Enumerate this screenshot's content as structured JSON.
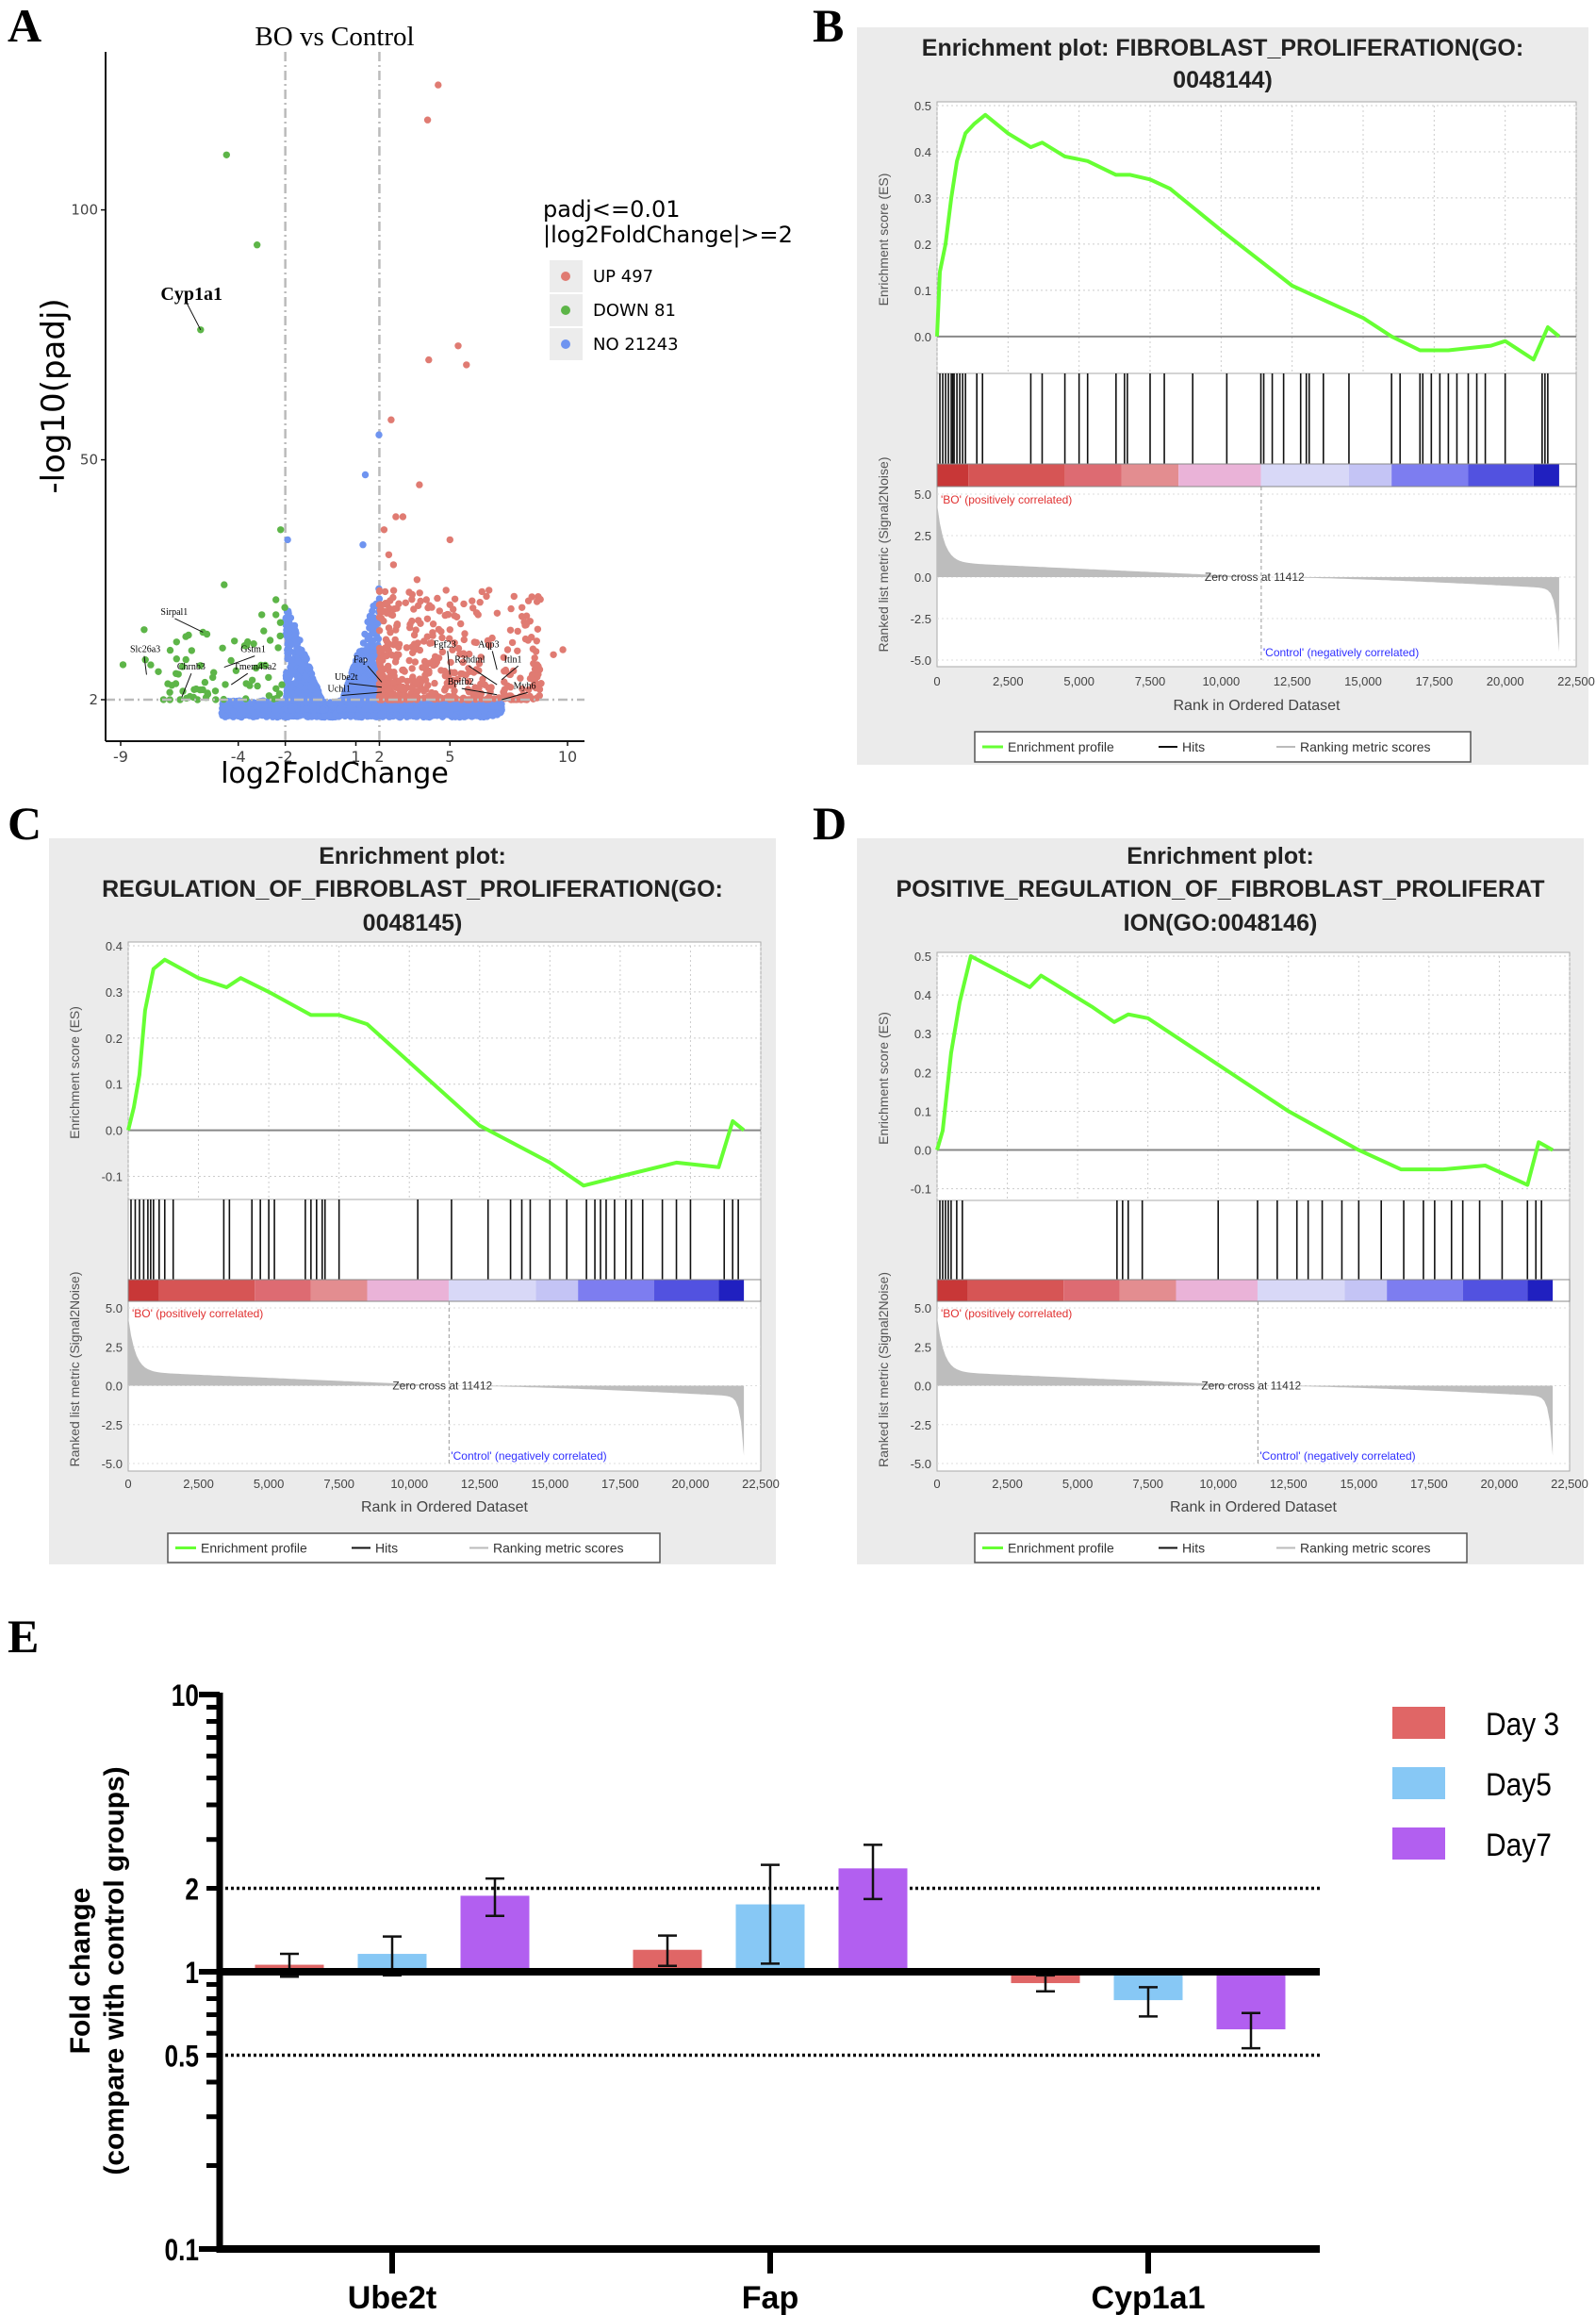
{
  "panel_letters": [
    "A",
    "B",
    "C",
    "D",
    "E"
  ],
  "chart_data": [
    {
      "type": "scatter",
      "id": "volcano",
      "title": "BO vs Control",
      "xlabel": "log2FoldChange",
      "ylabel": "-log10(padj)",
      "xticks": [
        "-9",
        "-4",
        "-2",
        "1",
        "2",
        "5",
        "10"
      ],
      "xtick_values": [
        -9,
        -4,
        -2,
        1,
        2,
        5,
        10
      ],
      "yticks": [
        "2",
        "50",
        "100"
      ],
      "ytick_values": [
        2,
        50,
        100
      ],
      "xlim": [
        -9.6,
        10.4
      ],
      "ylim": [
        -6,
        132
      ],
      "thresholds": {
        "log2fc": [
          -2,
          2
        ],
        "neglog10_padj": 2
      },
      "legend": {
        "title_lines": [
          "padj<=0.01",
          "|log2FoldChange|>=2"
        ],
        "items": [
          {
            "label": "UP 497",
            "color": "#e07b72"
          },
          {
            "label": "DOWN 81",
            "color": "#5db548"
          },
          {
            "label": "NO 21243",
            "color": "#6f94f0"
          }
        ]
      },
      "counts": {
        "up": 497,
        "down": 81,
        "no": 21243
      },
      "notable_points": {
        "up": [
          [
            4.5,
            125
          ],
          [
            4.05,
            118
          ],
          [
            5.35,
            72.8
          ],
          [
            4.1,
            70
          ],
          [
            5.7,
            69
          ],
          [
            2.5,
            58
          ],
          [
            3.7,
            45
          ],
          [
            2.7,
            38.6
          ],
          [
            3.0,
            38.6
          ],
          [
            2.2,
            36
          ],
          [
            5.0,
            34
          ],
          [
            2.4,
            31
          ],
          [
            2.6,
            29
          ],
          [
            3.6,
            26
          ],
          [
            4.0,
            22
          ],
          [
            5.0,
            21
          ],
          [
            6.2,
            19
          ],
          [
            5.0,
            16
          ],
          [
            5.6,
            14
          ],
          [
            9.8,
            12
          ],
          [
            9.4,
            11
          ],
          [
            8.7,
            9
          ],
          [
            8.5,
            7
          ]
        ],
        "down": [
          [
            -4.5,
            111
          ],
          [
            -3.2,
            93
          ],
          [
            -5.6,
            76
          ],
          [
            -2.2,
            36
          ],
          [
            -4.6,
            25
          ],
          [
            -2.4,
            22
          ],
          [
            -5.5,
            15.5
          ],
          [
            -8.0,
            16
          ],
          [
            -8.9,
            9
          ],
          [
            -3.0,
            19
          ],
          [
            -2.4,
            19
          ]
        ],
        "no": [
          [
            1.98,
            55
          ],
          [
            1.4,
            47
          ],
          [
            -1.9,
            34
          ],
          [
            1.3,
            33
          ]
        ]
      },
      "labeled_genes": [
        {
          "gene": "Cyp1a1",
          "x": -5.6,
          "y": 76
        },
        {
          "gene": "Sirpal1",
          "x": -5.5,
          "y": 15.5
        },
        {
          "gene": "Slc26a3",
          "x": -7.9,
          "y": 7
        },
        {
          "gene": "Chrnb3",
          "x": -6.4,
          "y": 2.5
        },
        {
          "gene": "Gstm1",
          "x": -4.6,
          "y": 8.5
        },
        {
          "gene": "Tmem45a2",
          "x": -4.3,
          "y": 5
        },
        {
          "gene": "Fap",
          "x": 2.1,
          "y": 5.5
        },
        {
          "gene": "Ube2t",
          "x": 2.1,
          "y": 4.5
        },
        {
          "gene": "Uchl1",
          "x": 2.1,
          "y": 3.5
        },
        {
          "gene": "Fgf23",
          "x": 5.0,
          "y": 7
        },
        {
          "gene": "R3hdml",
          "x": 7.0,
          "y": 5
        },
        {
          "gene": "Aqp3",
          "x": 7.0,
          "y": 8
        },
        {
          "gene": "Itln1",
          "x": 7.2,
          "y": 6
        },
        {
          "gene": "Bpifb2",
          "x": 7.0,
          "y": 3
        },
        {
          "gene": "Myh6",
          "x": 7.2,
          "y": 2
        }
      ]
    },
    {
      "type": "line",
      "id": "gsea_b",
      "title_lines": [
        "Enrichment plot: FIBROBLAST_PROLIFERATION(GO:",
        "0048144)"
      ],
      "es_ylabel": "Enrichment score (ES)",
      "metric_ylabel": "Ranked list metric (Signal2Noise)",
      "xlabel": "Rank in Ordered Dataset",
      "es_ticks": [
        "0.0",
        "0.1",
        "0.2",
        "0.3",
        "0.4",
        "0.5"
      ],
      "es_tick_values": [
        0,
        0.1,
        0.2,
        0.3,
        0.4,
        0.5
      ],
      "es_ylim": [
        -0.08,
        0.5
      ],
      "es_curve": [
        [
          0,
          0
        ],
        [
          100,
          0.14
        ],
        [
          300,
          0.2
        ],
        [
          500,
          0.3
        ],
        [
          700,
          0.38
        ],
        [
          1000,
          0.44
        ],
        [
          1300,
          0.46
        ],
        [
          1700,
          0.48
        ],
        [
          2500,
          0.44
        ],
        [
          3300,
          0.41
        ],
        [
          3700,
          0.42
        ],
        [
          4500,
          0.39
        ],
        [
          5300,
          0.38
        ],
        [
          6300,
          0.35
        ],
        [
          6800,
          0.35
        ],
        [
          7500,
          0.34
        ],
        [
          8200,
          0.32
        ],
        [
          10000,
          0.23
        ],
        [
          12500,
          0.11
        ],
        [
          15000,
          0.04
        ],
        [
          16000,
          0.0
        ],
        [
          17000,
          -0.03
        ],
        [
          18000,
          -0.03
        ],
        [
          19500,
          -0.02
        ],
        [
          20000,
          -0.01
        ],
        [
          21000,
          -0.05
        ],
        [
          21500,
          0.02
        ],
        [
          21900,
          0.0
        ]
      ],
      "hits": [
        100,
        200,
        300,
        400,
        500,
        550,
        600,
        700,
        800,
        900,
        1000,
        1400,
        1600,
        3300,
        3700,
        4500,
        5000,
        5300,
        6300,
        6600,
        6700,
        7500,
        8000,
        9000,
        10200,
        11400,
        11500,
        11800,
        12200,
        12800,
        13000,
        13100,
        13600,
        14500,
        16000,
        16300,
        17000,
        17100,
        17400,
        17700,
        18000,
        18300,
        18700,
        19000,
        19300,
        20000,
        21300,
        21400,
        21500
      ],
      "metric_ticks": [
        "5.0",
        "2.5",
        "0.0",
        "-2.5",
        "-5.0"
      ],
      "metric_tick_values": [
        5,
        2.5,
        0,
        -2.5,
        -5
      ],
      "xticks": [
        "0",
        "2,500",
        "5,000",
        "7,500",
        "10,000",
        "12,500",
        "15,000",
        "17,500",
        "20,000",
        "22,500"
      ],
      "xtick_values": [
        0,
        2500,
        5000,
        7500,
        10000,
        12500,
        15000,
        17500,
        20000,
        22500
      ],
      "xlim": [
        0,
        22500
      ],
      "pos_label": "'BO' (positively correlated)",
      "neg_label": "'Control' (negatively correlated)",
      "zero_cross_label": "Zero cross at 11412",
      "zero_cross": 11412,
      "legend": [
        "Enrichment profile",
        "Hits",
        "Ranking metric scores"
      ]
    },
    {
      "type": "line",
      "id": "gsea_c",
      "title_lines": [
        "Enrichment plot:",
        "REGULATION_OF_FIBROBLAST_PROLIFERATION(GO:",
        "0048145)"
      ],
      "es_ylabel": "Enrichment score (ES)",
      "metric_ylabel": "Ranked list metric (Signal2Noise)",
      "xlabel": "Rank in Ordered Dataset",
      "es_ticks": [
        "-0.1",
        "0.0",
        "0.1",
        "0.2",
        "0.3",
        "0.4"
      ],
      "es_tick_values": [
        -0.1,
        0,
        0.1,
        0.2,
        0.3,
        0.4
      ],
      "es_ylim": [
        -0.15,
        0.4
      ],
      "es_curve": [
        [
          0,
          0
        ],
        [
          200,
          0.05
        ],
        [
          400,
          0.12
        ],
        [
          600,
          0.26
        ],
        [
          900,
          0.35
        ],
        [
          1300,
          0.37
        ],
        [
          2500,
          0.33
        ],
        [
          3500,
          0.31
        ],
        [
          4000,
          0.33
        ],
        [
          5000,
          0.3
        ],
        [
          6500,
          0.25
        ],
        [
          7500,
          0.25
        ],
        [
          8500,
          0.23
        ],
        [
          12500,
          0.01
        ],
        [
          15000,
          -0.07
        ],
        [
          16200,
          -0.12
        ],
        [
          17500,
          -0.1
        ],
        [
          19500,
          -0.07
        ],
        [
          21000,
          -0.08
        ],
        [
          21500,
          0.02
        ],
        [
          21900,
          0.0
        ]
      ],
      "hits": [
        100,
        250,
        400,
        550,
        700,
        800,
        900,
        1100,
        1300,
        1600,
        3400,
        3600,
        4400,
        4700,
        5000,
        5200,
        6300,
        6500,
        6700,
        6900,
        7000,
        7500,
        10300,
        11500,
        12800,
        13600,
        14000,
        14300,
        15000,
        15600,
        16300,
        16600,
        16800,
        17000,
        17300,
        17700,
        17900,
        18300,
        19000,
        19500,
        20000,
        21200,
        21500,
        21700
      ],
      "metric_ticks": [
        "5.0",
        "2.5",
        "0.0",
        "-2.5",
        "-5.0"
      ],
      "metric_tick_values": [
        5,
        2.5,
        0,
        -2.5,
        -5
      ],
      "xticks": [
        "0",
        "2,500",
        "5,000",
        "7,500",
        "10,000",
        "12,500",
        "15,000",
        "17,500",
        "20,000",
        "22,500"
      ],
      "xtick_values": [
        0,
        2500,
        5000,
        7500,
        10000,
        12500,
        15000,
        17500,
        20000,
        22500
      ],
      "xlim": [
        0,
        22500
      ],
      "pos_label": "'BO' (positively correlated)",
      "neg_label": "'Control' (negatively correlated)",
      "zero_cross_label": "Zero cross at 11412",
      "zero_cross": 11412,
      "legend": [
        "Enrichment profile",
        "Hits",
        "Ranking metric scores"
      ]
    },
    {
      "type": "line",
      "id": "gsea_d",
      "title_lines": [
        "Enrichment plot:",
        "POSITIVE_REGULATION_OF_FIBROBLAST_PROLIFERAT",
        "ION(GO:0048146)"
      ],
      "es_ylabel": "Enrichment score (ES)",
      "metric_ylabel": "Ranked list metric (Signal2Noise)",
      "xlabel": "Rank in Ordered Dataset",
      "es_ticks": [
        "-0.1",
        "0.0",
        "0.1",
        "0.2",
        "0.3",
        "0.4",
        "0.5"
      ],
      "es_tick_values": [
        -0.1,
        0,
        0.1,
        0.2,
        0.3,
        0.4,
        0.5
      ],
      "es_ylim": [
        -0.13,
        0.5
      ],
      "es_curve": [
        [
          0,
          0
        ],
        [
          200,
          0.05
        ],
        [
          500,
          0.25
        ],
        [
          800,
          0.38
        ],
        [
          1200,
          0.5
        ],
        [
          3300,
          0.42
        ],
        [
          3700,
          0.45
        ],
        [
          5500,
          0.37
        ],
        [
          6300,
          0.33
        ],
        [
          6800,
          0.35
        ],
        [
          7500,
          0.34
        ],
        [
          10000,
          0.22
        ],
        [
          12500,
          0.1
        ],
        [
          15000,
          0.0
        ],
        [
          16500,
          -0.05
        ],
        [
          18000,
          -0.05
        ],
        [
          19500,
          -0.04
        ],
        [
          21000,
          -0.09
        ],
        [
          21400,
          0.02
        ],
        [
          21900,
          0.0
        ]
      ],
      "hits": [
        100,
        200,
        300,
        400,
        500,
        700,
        900,
        6400,
        6600,
        6800,
        7300,
        10000,
        11400,
        12100,
        12800,
        13200,
        13700,
        14400,
        15000,
        15800,
        16600,
        17300,
        17700,
        18300,
        18700,
        19300,
        20100,
        21000,
        21300,
        21500
      ],
      "metric_ticks": [
        "5.0",
        "2.5",
        "0.0",
        "-2.5",
        "-5.0"
      ],
      "metric_tick_values": [
        5,
        2.5,
        0,
        -2.5,
        -5
      ],
      "xticks": [
        "0",
        "2,500",
        "5,000",
        "7,500",
        "10,000",
        "12,500",
        "15,000",
        "17,500",
        "20,000",
        "22,500"
      ],
      "xtick_values": [
        0,
        2500,
        5000,
        7500,
        10000,
        12500,
        15000,
        17500,
        20000,
        22500
      ],
      "xlim": [
        0,
        22500
      ],
      "pos_label": "'BO' (positively correlated)",
      "neg_label": "'Control' (negatively correlated)",
      "zero_cross_label": "Zero cross at 11412",
      "zero_cross": 11412,
      "legend": [
        "Enrichment profile",
        "Hits",
        "Ranking metric scores"
      ]
    },
    {
      "type": "bar",
      "id": "fold_change",
      "ylabel_lines": [
        "Fold change",
        "(compare with control groups)"
      ],
      "yscale": "log",
      "ylim": [
        0.1,
        10
      ],
      "yticks": [
        "10",
        "2",
        "1",
        "0.5",
        "0.1"
      ],
      "ytick_values": [
        10,
        2,
        1,
        0.5,
        0.1
      ],
      "reference_lines": [
        2,
        0.5
      ],
      "categories": [
        "Ube2t",
        "Fap",
        "Cyp1a1"
      ],
      "series": [
        {
          "name": "Day 3",
          "color": "#e06666",
          "values": [
            1.06,
            1.2,
            0.91
          ],
          "err_low": [
            0.96,
            1.05,
            0.85
          ],
          "err_high": [
            1.16,
            1.35,
            0.97
          ]
        },
        {
          "name": "Day5",
          "color": "#87c8f5",
          "values": [
            1.16,
            1.75,
            0.79
          ],
          "err_low": [
            0.97,
            1.07,
            0.69
          ],
          "err_high": [
            1.34,
            2.43,
            0.88
          ]
        },
        {
          "name": "Day7",
          "color": "#b25ff0",
          "values": [
            1.88,
            2.36,
            0.62
          ],
          "err_low": [
            1.59,
            1.83,
            0.53
          ],
          "err_high": [
            2.17,
            2.87,
            0.71
          ]
        }
      ]
    }
  ],
  "gsea_band": {
    "colors": [
      "#c83737",
      "#d65555",
      "#dd6b72",
      "#e38d90",
      "#eab3d8",
      "#d8d8f7",
      "#c4c4f5",
      "#7d7df0",
      "#5252e0",
      "#2020c0"
    ],
    "rank_bounds": [
      0,
      1100,
      4500,
      6500,
      8500,
      11400,
      14500,
      16000,
      18700,
      21000,
      21900
    ]
  },
  "colors": {
    "es_line": "#66ff33",
    "panel_bg": "#ebebeb",
    "metric_fill": "#bdbdbd",
    "pos_text": "#e03030",
    "neg_text": "#3030ff"
  }
}
